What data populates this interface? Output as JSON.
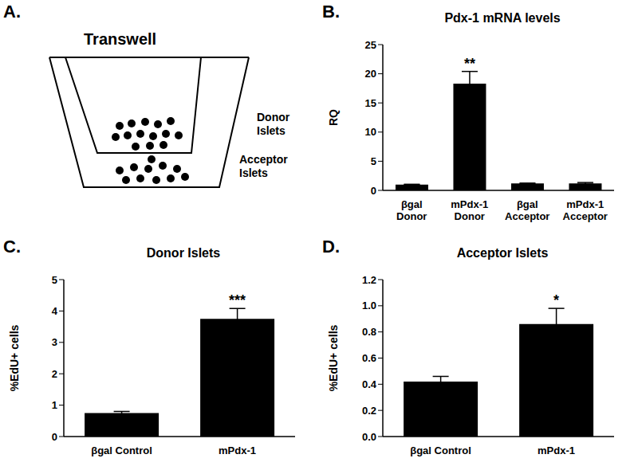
{
  "diagram": {
    "label": "A.",
    "title": "Transwell",
    "texts": [
      "Donor Islets",
      "Acceptor Islets"
    ]
  },
  "chart_data": [
    {
      "type": "bar",
      "label": "B.",
      "title": "Pdx-1 mRNA levels",
      "y_label": "RQ",
      "categories": [
        "βgal Donor",
        "mPdx-1 Donor",
        "βgal Acceptor",
        "mPdx-1 Acceptor"
      ],
      "values": [
        1.0,
        18.3,
        1.2,
        1.2
      ],
      "errors": [
        0.05,
        2.1,
        0.05,
        0.15
      ],
      "annotations": [
        null,
        "**",
        null,
        null
      ],
      "color": "#000000",
      "ylim": [
        0,
        25
      ],
      "yticks": [
        0,
        5,
        10,
        15,
        20,
        25
      ],
      "grid": false
    },
    {
      "type": "bar",
      "label": "C.",
      "title": "Donor Islets",
      "y_label": "%EdU+ cells",
      "categories": [
        "βgal Control",
        "mPdx-1"
      ],
      "values": [
        0.75,
        3.75
      ],
      "errors": [
        0.05,
        0.33
      ],
      "annotations": [
        null,
        "***"
      ],
      "color": "#000000",
      "ylim": [
        0,
        5
      ],
      "yticks": [
        0,
        1,
        2,
        3,
        4,
        5
      ],
      "grid": false
    },
    {
      "type": "bar",
      "label": "D.",
      "title": "Acceptor Islets",
      "y_label": "%EdU+ cells",
      "categories": [
        "βgal Control",
        "mPdx-1"
      ],
      "values": [
        0.42,
        0.86
      ],
      "errors": [
        0.04,
        0.12
      ],
      "annotations": [
        null,
        "*"
      ],
      "color": "#000000",
      "ylim": [
        0,
        1.2
      ],
      "yticks": [
        {
          "value": 0,
          "label": "0.0"
        },
        0.2,
        0.4,
        0.6,
        0.8,
        {
          "value": 1,
          "label": "1.0"
        },
        1.2
      ],
      "grid": false
    }
  ]
}
